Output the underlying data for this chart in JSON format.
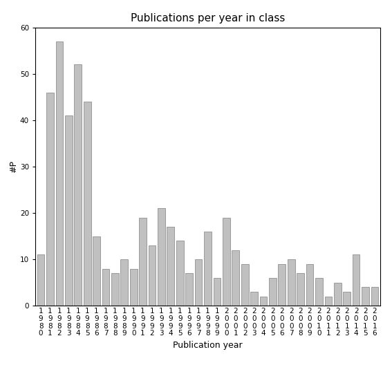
{
  "title": "Publications per year in class",
  "xlabel": "Publication year",
  "ylabel": "#P",
  "ylim": [
    0,
    60
  ],
  "yticks": [
    0,
    10,
    20,
    30,
    40,
    50,
    60
  ],
  "years": [
    "1980",
    "1981",
    "1982",
    "1983",
    "1984",
    "1985",
    "1986",
    "1987",
    "1988",
    "1989",
    "1990",
    "1991",
    "1992",
    "1993",
    "1994",
    "1995",
    "1996",
    "1997",
    "1998",
    "1999",
    "2000",
    "2001",
    "2002",
    "2003",
    "2004",
    "2005",
    "2006",
    "2007",
    "2008",
    "2009",
    "2010",
    "2011",
    "2012",
    "2013",
    "2014",
    "2015",
    "2016"
  ],
  "values": [
    11,
    46,
    57,
    41,
    52,
    44,
    15,
    8,
    7,
    10,
    8,
    19,
    13,
    21,
    17,
    14,
    7,
    10,
    16,
    6,
    19,
    12,
    9,
    3,
    2,
    6,
    9,
    10,
    7,
    9,
    6,
    2,
    5,
    3,
    11,
    4,
    4
  ],
  "bar_color": "#c0c0c0",
  "bar_edgecolor": "#808080",
  "background_color": "#ffffff",
  "title_fontsize": 11,
  "label_fontsize": 9,
  "tick_fontsize": 7.5
}
